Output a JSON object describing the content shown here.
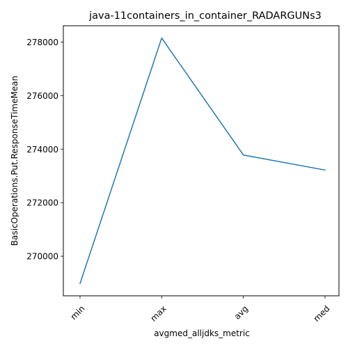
{
  "chart_data": {
    "type": "line",
    "title": "java-11containers_in_container_RADARGUNs3",
    "xlabel": "avgmed_alljdks_metric",
    "ylabel": "BasicOperations.Put.ResponseTimeMean",
    "categories": [
      "min",
      "max",
      "avg",
      "med"
    ],
    "series": [
      {
        "values": [
          268980,
          278150,
          273780,
          273220
        ]
      }
    ],
    "ylim": [
      268520,
      278610
    ],
    "yticks": [
      270000,
      272000,
      274000,
      276000,
      278000
    ],
    "ytick_labels": [
      "270000",
      "272000",
      "274000",
      "276000",
      "278000"
    ],
    "line_color": "#1f77b4",
    "grid": false,
    "legend": "none"
  }
}
